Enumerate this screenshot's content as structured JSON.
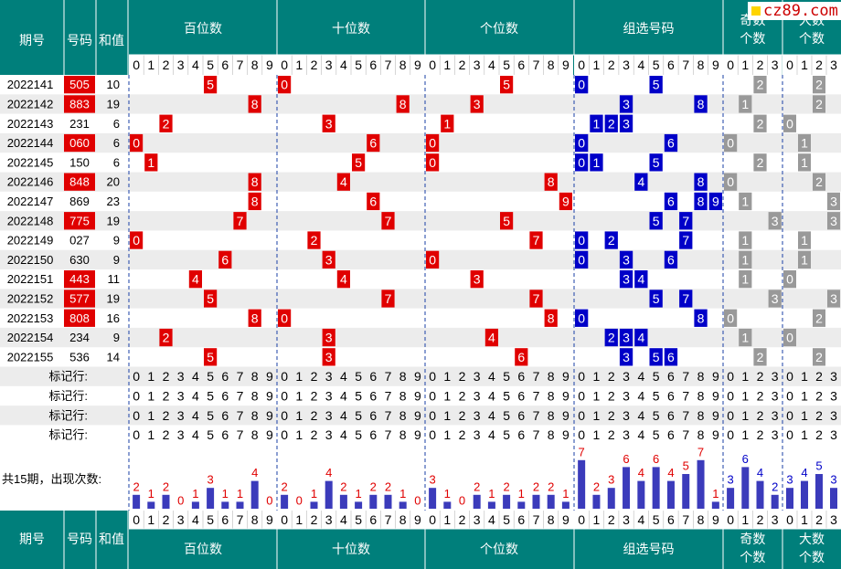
{
  "logo_text": "cz89.com",
  "colors": {
    "header_bg": "#007f7b",
    "winning_red": "#e00000",
    "group_blue": "#0000c8",
    "count_gray": "#999999",
    "row_alt": "#ececec",
    "bar_fill": "#3b3bbb",
    "freq_label": "#e00000"
  },
  "header": {
    "qihao": "期号",
    "haoma": "号码",
    "hezhi": "和值",
    "groups": [
      "百位数",
      "十位数",
      "个位数",
      "组选号码",
      "奇数个数",
      "大数个数"
    ],
    "group_keys": [
      "bai",
      "shi",
      "ge",
      "zu",
      "odd",
      "big"
    ],
    "digits": [
      "0",
      "1",
      "2",
      "3",
      "4",
      "5",
      "6",
      "7",
      "8",
      "9"
    ],
    "count_digits": [
      "0",
      "1",
      "2",
      "3"
    ]
  },
  "marker_label": "标记行:",
  "marker_rows": 4,
  "freq_label": "共15期，出现次数:",
  "chart_data": {
    "type": "table",
    "rows": [
      {
        "issue": "2022141",
        "number": "505",
        "sum": 10,
        "red": true,
        "bai": 5,
        "shi": 0,
        "ge": 5,
        "zu": [
          0,
          5
        ],
        "odd": 2,
        "big": 2
      },
      {
        "issue": "2022142",
        "number": "883",
        "sum": 19,
        "red": true,
        "bai": 8,
        "shi": 8,
        "ge": 3,
        "zu": [
          3,
          8
        ],
        "odd": 1,
        "big": 2
      },
      {
        "issue": "2022143",
        "number": "231",
        "sum": 6,
        "red": false,
        "bai": 2,
        "shi": 3,
        "ge": 1,
        "zu": [
          1,
          2,
          3
        ],
        "odd": 2,
        "big": 0
      },
      {
        "issue": "2022144",
        "number": "060",
        "sum": 6,
        "red": true,
        "bai": 0,
        "shi": 6,
        "ge": 0,
        "zu": [
          0,
          6
        ],
        "odd": 0,
        "big": 1
      },
      {
        "issue": "2022145",
        "number": "150",
        "sum": 6,
        "red": false,
        "bai": 1,
        "shi": 5,
        "ge": 0,
        "zu": [
          0,
          1,
          5
        ],
        "odd": 2,
        "big": 1
      },
      {
        "issue": "2022146",
        "number": "848",
        "sum": 20,
        "red": true,
        "bai": 8,
        "shi": 4,
        "ge": 8,
        "zu": [
          4,
          8
        ],
        "odd": 0,
        "big": 2
      },
      {
        "issue": "2022147",
        "number": "869",
        "sum": 23,
        "red": false,
        "bai": 8,
        "shi": 6,
        "ge": 9,
        "zu": [
          6,
          8,
          9
        ],
        "odd": 1,
        "big": 3
      },
      {
        "issue": "2022148",
        "number": "775",
        "sum": 19,
        "red": true,
        "bai": 7,
        "shi": 7,
        "ge": 5,
        "zu": [
          5,
          7
        ],
        "odd": 3,
        "big": 3
      },
      {
        "issue": "2022149",
        "number": "027",
        "sum": 9,
        "red": false,
        "bai": 0,
        "shi": 2,
        "ge": 7,
        "zu": [
          0,
          2,
          7
        ],
        "odd": 1,
        "big": 1
      },
      {
        "issue": "2022150",
        "number": "630",
        "sum": 9,
        "red": false,
        "bai": 6,
        "shi": 3,
        "ge": 0,
        "zu": [
          0,
          3,
          6
        ],
        "odd": 1,
        "big": 1
      },
      {
        "issue": "2022151",
        "number": "443",
        "sum": 11,
        "red": true,
        "bai": 4,
        "shi": 4,
        "ge": 3,
        "zu": [
          3,
          4
        ],
        "odd": 1,
        "big": 0
      },
      {
        "issue": "2022152",
        "number": "577",
        "sum": 19,
        "red": true,
        "bai": 5,
        "shi": 7,
        "ge": 7,
        "zu": [
          5,
          7
        ],
        "odd": 3,
        "big": 3
      },
      {
        "issue": "2022153",
        "number": "808",
        "sum": 16,
        "red": true,
        "bai": 8,
        "shi": 0,
        "ge": 8,
        "zu": [
          0,
          8
        ],
        "odd": 0,
        "big": 2
      },
      {
        "issue": "2022154",
        "number": "234",
        "sum": 9,
        "red": false,
        "bai": 2,
        "shi": 3,
        "ge": 4,
        "zu": [
          2,
          3,
          4
        ],
        "odd": 1,
        "big": 0
      },
      {
        "issue": "2022155",
        "number": "536",
        "sum": 14,
        "red": false,
        "bai": 5,
        "shi": 3,
        "ge": 6,
        "zu": [
          3,
          5,
          6
        ],
        "odd": 2,
        "big": 2
      }
    ],
    "frequencies": {
      "bai": [
        2,
        1,
        2,
        0,
        1,
        3,
        1,
        1,
        4,
        0
      ],
      "shi": [
        2,
        0,
        1,
        4,
        2,
        1,
        2,
        2,
        1,
        0
      ],
      "ge": [
        3,
        1,
        0,
        2,
        1,
        2,
        1,
        2,
        2,
        1
      ],
      "zu": [
        7,
        2,
        3,
        6,
        4,
        6,
        4,
        5,
        7,
        1
      ],
      "odd": [
        3,
        6,
        4,
        2
      ],
      "big": [
        3,
        4,
        5,
        3
      ]
    }
  }
}
